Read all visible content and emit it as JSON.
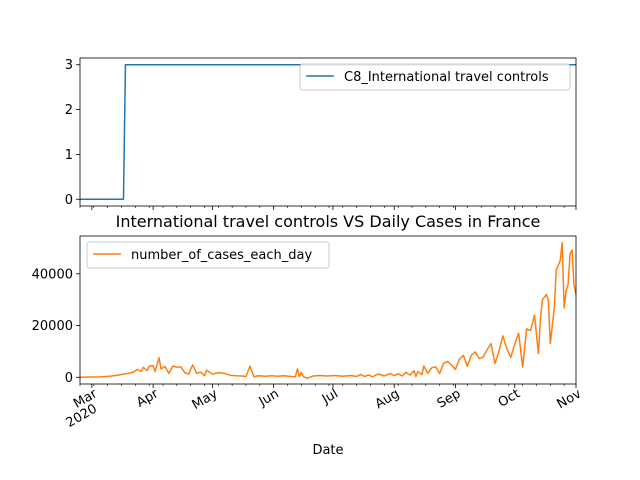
{
  "chart_data": [
    {
      "type": "line",
      "title": "",
      "xlabel": "",
      "ylabel": "",
      "ylim": [
        -0.15,
        3.15
      ],
      "yticks": [
        0,
        1,
        2,
        3
      ],
      "legend_position": "top-right",
      "grid": false,
      "series": [
        {
          "name": "C8_International travel controls",
          "color": "#1f77b4",
          "points": [
            [
              "2020-02-24",
              0
            ],
            [
              "2020-03-17",
              0
            ],
            [
              "2020-03-18",
              3
            ],
            [
              "2020-11-01",
              3
            ]
          ]
        }
      ]
    },
    {
      "type": "line",
      "title": "International travel controls VS Daily Cases in France",
      "xlabel": "Date",
      "ylabel": "",
      "ylim": [
        -2600,
        54600
      ],
      "yticks": [
        0,
        20000,
        40000
      ],
      "legend_position": "top-left",
      "grid": false,
      "x_ticks": [
        {
          "date": "2020-03-01",
          "label": "Mar",
          "sublabel": "2020"
        },
        {
          "date": "2020-04-01",
          "label": "Apr"
        },
        {
          "date": "2020-05-01",
          "label": "May"
        },
        {
          "date": "2020-06-01",
          "label": "Jun"
        },
        {
          "date": "2020-07-01",
          "label": "Jul"
        },
        {
          "date": "2020-08-01",
          "label": "Aug"
        },
        {
          "date": "2020-09-01",
          "label": "Sep"
        },
        {
          "date": "2020-10-01",
          "label": "Oct"
        },
        {
          "date": "2020-11-01",
          "label": "Nov"
        }
      ],
      "series": [
        {
          "name": "number_of_cases_each_day",
          "color": "#ff7f0e",
          "points": [
            [
              "2020-02-24",
              0
            ],
            [
              "2020-03-01",
              100
            ],
            [
              "2020-03-05",
              150
            ],
            [
              "2020-03-10",
              400
            ],
            [
              "2020-03-14",
              800
            ],
            [
              "2020-03-17",
              1200
            ],
            [
              "2020-03-20",
              1600
            ],
            [
              "2020-03-22",
              2000
            ],
            [
              "2020-03-24",
              3000
            ],
            [
              "2020-03-26",
              2300
            ],
            [
              "2020-03-27",
              3800
            ],
            [
              "2020-03-29",
              2600
            ],
            [
              "2020-03-30",
              4300
            ],
            [
              "2020-04-01",
              4500
            ],
            [
              "2020-04-02",
              2200
            ],
            [
              "2020-04-03",
              4900
            ],
            [
              "2020-04-04",
              7500
            ],
            [
              "2020-04-05",
              3200
            ],
            [
              "2020-04-07",
              4200
            ],
            [
              "2020-04-09",
              1500
            ],
            [
              "2020-04-11",
              4300
            ],
            [
              "2020-04-13",
              3900
            ],
            [
              "2020-04-15",
              4000
            ],
            [
              "2020-04-17",
              1800
            ],
            [
              "2020-04-19",
              1200
            ],
            [
              "2020-04-21",
              4800
            ],
            [
              "2020-04-23",
              1500
            ],
            [
              "2020-04-25",
              2000
            ],
            [
              "2020-04-27",
              600
            ],
            [
              "2020-04-28",
              2800
            ],
            [
              "2020-05-01",
              1200
            ],
            [
              "2020-05-04",
              1800
            ],
            [
              "2020-05-07",
              1500
            ],
            [
              "2020-05-10",
              800
            ],
            [
              "2020-05-13",
              600
            ],
            [
              "2020-05-16",
              500
            ],
            [
              "2020-05-18",
              300
            ],
            [
              "2020-05-20",
              4300
            ],
            [
              "2020-05-22",
              200
            ],
            [
              "2020-05-24",
              600
            ],
            [
              "2020-05-28",
              400
            ],
            [
              "2020-05-31",
              600
            ],
            [
              "2020-06-03",
              400
            ],
            [
              "2020-06-06",
              600
            ],
            [
              "2020-06-10",
              300
            ],
            [
              "2020-06-12",
              200
            ],
            [
              "2020-06-13",
              3200
            ],
            [
              "2020-06-14",
              200
            ],
            [
              "2020-06-15",
              1900
            ],
            [
              "2020-06-16",
              300
            ],
            [
              "2020-06-18",
              -400
            ],
            [
              "2020-06-21",
              500
            ],
            [
              "2020-06-24",
              700
            ],
            [
              "2020-06-28",
              500
            ],
            [
              "2020-07-02",
              700
            ],
            [
              "2020-07-06",
              400
            ],
            [
              "2020-07-10",
              700
            ],
            [
              "2020-07-13",
              300
            ],
            [
              "2020-07-15",
              1100
            ],
            [
              "2020-07-17",
              300
            ],
            [
              "2020-07-19",
              900
            ],
            [
              "2020-07-21",
              200
            ],
            [
              "2020-07-24",
              1300
            ],
            [
              "2020-07-27",
              500
            ],
            [
              "2020-07-30",
              1500
            ],
            [
              "2020-08-01",
              600
            ],
            [
              "2020-08-03",
              1400
            ],
            [
              "2020-08-05",
              500
            ],
            [
              "2020-08-07",
              1900
            ],
            [
              "2020-08-09",
              800
            ],
            [
              "2020-08-11",
              2500
            ],
            [
              "2020-08-12",
              300
            ],
            [
              "2020-08-13",
              2200
            ],
            [
              "2020-08-15",
              1000
            ],
            [
              "2020-08-16",
              4400
            ],
            [
              "2020-08-18",
              1500
            ],
            [
              "2020-08-20",
              3700
            ],
            [
              "2020-08-22",
              4000
            ],
            [
              "2020-08-24",
              1500
            ],
            [
              "2020-08-26",
              5400
            ],
            [
              "2020-08-28",
              6100
            ],
            [
              "2020-08-30",
              4800
            ],
            [
              "2020-09-01",
              3000
            ],
            [
              "2020-09-03",
              7000
            ],
            [
              "2020-09-05",
              8500
            ],
            [
              "2020-09-07",
              4200
            ],
            [
              "2020-09-09",
              8500
            ],
            [
              "2020-09-11",
              9800
            ],
            [
              "2020-09-13",
              7200
            ],
            [
              "2020-09-15",
              7800
            ],
            [
              "2020-09-17",
              10600
            ],
            [
              "2020-09-19",
              13000
            ],
            [
              "2020-09-21",
              5300
            ],
            [
              "2020-09-23",
              10000
            ],
            [
              "2020-09-25",
              16000
            ],
            [
              "2020-09-27",
              11000
            ],
            [
              "2020-09-29",
              7700
            ],
            [
              "2020-10-01",
              12800
            ],
            [
              "2020-10-03",
              17000
            ],
            [
              "2020-10-05",
              4000
            ],
            [
              "2020-10-07",
              18700
            ],
            [
              "2020-10-09",
              18000
            ],
            [
              "2020-10-11",
              24000
            ],
            [
              "2020-10-13",
              9100
            ],
            [
              "2020-10-14",
              22600
            ],
            [
              "2020-10-15",
              30000
            ],
            [
              "2020-10-17",
              32000
            ],
            [
              "2020-10-18",
              29800
            ],
            [
              "2020-10-19",
              13000
            ],
            [
              "2020-10-21",
              26700
            ],
            [
              "2020-10-22",
              41600
            ],
            [
              "2020-10-24",
              45000
            ],
            [
              "2020-10-25",
              52000
            ],
            [
              "2020-10-26",
              26800
            ],
            [
              "2020-10-27",
              33400
            ],
            [
              "2020-10-28",
              36000
            ],
            [
              "2020-10-29",
              47600
            ],
            [
              "2020-10-30",
              49200
            ],
            [
              "2020-10-31",
              35600
            ],
            [
              "2020-11-01",
              32000
            ]
          ]
        }
      ]
    }
  ]
}
